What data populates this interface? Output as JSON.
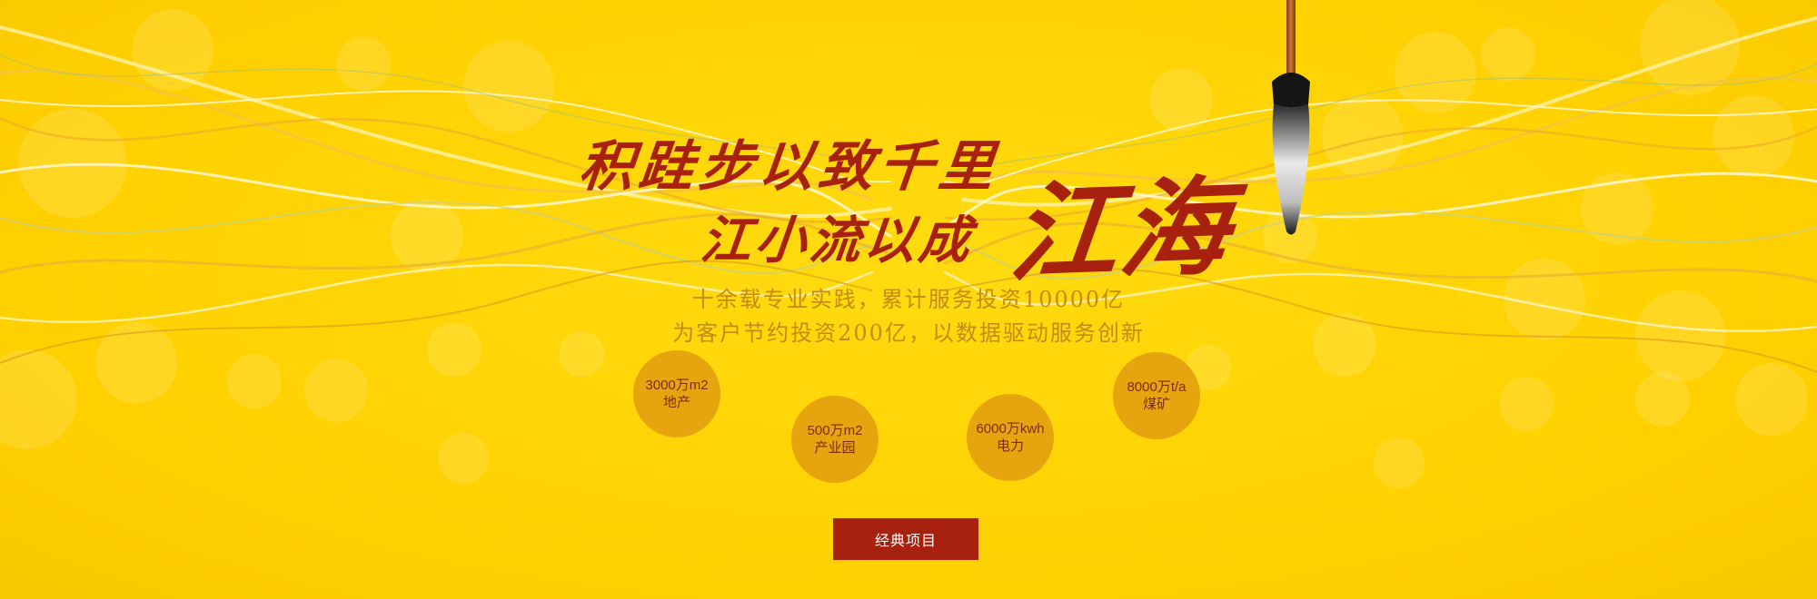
{
  "banner": {
    "headline_line1": "积跬步以致千里",
    "headline_line2": "江小流以成",
    "headline_big": "江海",
    "subtitle_1": "十余载专业实践，累计服务投资10000亿",
    "subtitle_2": "为客户节约投资200亿，以数据驱动服务创新",
    "stats": [
      {
        "value": "3000万m2",
        "label": "地产"
      },
      {
        "value": "500万m2",
        "label": "产业园"
      },
      {
        "value": "6000万kwh",
        "label": "电力"
      },
      {
        "value": "8000万t/a",
        "label": "煤矿"
      }
    ],
    "button_label": "经典项目"
  },
  "colors": {
    "background": "#FFD400",
    "headline": "#A8210F",
    "subtitle": "#C58A12",
    "stat_circle": "#E6A50E",
    "stat_text": "#7A2C0A",
    "button_bg": "#A8210F",
    "button_text": "#FFFFFF"
  },
  "icons": [
    "calligraphy-brush-icon"
  ]
}
